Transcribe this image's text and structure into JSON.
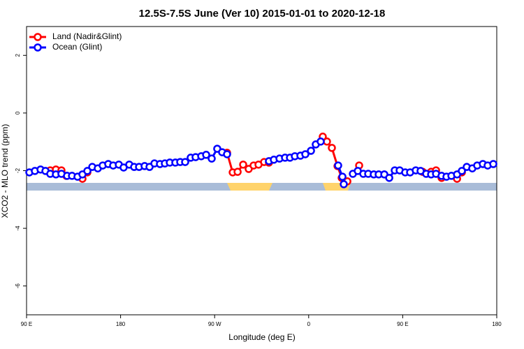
{
  "chart_data": {
    "type": "line",
    "title": "12.5S-7.5S June (Ver 10)   2015-01-01 to 2020-12-18",
    "xlabel": "Longitude (deg E)",
    "ylabel": "XCO2 - MLO trend (ppm)",
    "xlim": [
      90,
      540
    ],
    "xticks": [
      {
        "value": 90,
        "label": "90 E"
      },
      180,
      {
        "value": 270,
        "label": "90 W"
      },
      {
        "value": 360,
        "label": "0"
      },
      {
        "value": 450,
        "label": "90 E"
      },
      {
        "value": 540,
        "label": "180"
      }
    ],
    "ylim": [
      -7,
      3
    ],
    "yticks": [
      2,
      0,
      -2,
      -4,
      -6
    ],
    "legend": "top-left",
    "series": [
      {
        "name": "Land (Nadir&Glint)",
        "color": "#ff0000",
        "x": [
          112.7,
          118.1,
          123.4,
          128.1,
          null,
          143.5,
          148.2,
          null,
          281.9,
          287.3,
          292.0,
          297.3,
          302.6,
          307.3,
          312.0,
          317.4,
          322.0,
          null,
          373.5,
          377.5,
          382.2,
          387.6,
          391.6,
          397.0,
          null,
          408.3,
          null,
          469.1,
          477.2,
          481.9,
          487.2,
          null,
          502.0,
          506.6
        ],
        "values": [
          -1.99,
          -1.96,
          -1.99,
          -2.18,
          null,
          -2.28,
          -2.06,
          null,
          -1.38,
          -2.06,
          -2.04,
          -1.79,
          -1.94,
          -1.82,
          -1.79,
          -1.7,
          -1.72,
          null,
          -0.82,
          -0.99,
          -1.21,
          -1.84,
          -2.25,
          -2.37,
          null,
          -1.82,
          null,
          -2.04,
          -2.04,
          -1.99,
          -2.25,
          null,
          -2.28,
          -2.06
        ]
      },
      {
        "name": "Ocean (Glint)",
        "color": "#0000ff",
        "x": [
          92.7,
          98.0,
          103.4,
          108.1,
          112.7,
          118.1,
          123.4,
          128.8,
          133.5,
          138.8,
          143.5,
          148.2,
          152.9,
          158.2,
          162.9,
          168.2,
          172.9,
          178.3,
          182.9,
          188.3,
          193.0,
          197.7,
          203.0,
          207.7,
          212.4,
          217.7,
          222.4,
          227.1,
          232.4,
          237.1,
          241.8,
          247.1,
          251.8,
          257.2,
          261.9,
          267.2,
          272.5,
          277.2,
          281.9,
          null,
          322.0,
          326.7,
          332.1,
          337.4,
          342.1,
          346.8,
          352.1,
          356.8,
          362.2,
          366.8,
          371.5,
          null,
          388.2,
          392.3,
          393.6,
          null,
          402.3,
          407.0,
          412.3,
          417.0,
          422.3,
          427.0,
          432.4,
          437.1,
          442.4,
          447.1,
          452.4,
          457.1,
          462.5,
          467.1,
          472.5,
          477.2,
          481.9,
          487.2,
          491.9,
          496.6,
          502.0,
          506.6,
          511.3,
          516.6,
          521.3,
          526.7,
          531.3,
          536.7
        ],
        "values": [
          -2.06,
          -2.01,
          -1.96,
          -2.01,
          -2.11,
          -2.13,
          -2.11,
          -2.18,
          -2.18,
          -2.21,
          -2.13,
          -2.01,
          -1.87,
          -1.92,
          -1.82,
          -1.77,
          -1.82,
          -1.79,
          -1.89,
          -1.79,
          -1.87,
          -1.87,
          -1.84,
          -1.87,
          -1.75,
          -1.77,
          -1.75,
          -1.72,
          -1.72,
          -1.7,
          -1.7,
          -1.55,
          -1.53,
          -1.5,
          -1.45,
          -1.58,
          -1.24,
          -1.36,
          -1.43,
          null,
          -1.67,
          -1.62,
          -1.58,
          -1.55,
          -1.55,
          -1.5,
          -1.48,
          -1.43,
          -1.31,
          -1.09,
          -0.99,
          null,
          -1.82,
          -2.21,
          -2.47,
          null,
          -2.11,
          -2.01,
          -2.11,
          -2.11,
          -2.13,
          -2.13,
          -2.13,
          -2.25,
          -1.99,
          -1.99,
          -2.06,
          -2.06,
          -1.99,
          -2.01,
          -2.11,
          -2.13,
          -2.11,
          -2.18,
          -2.21,
          -2.18,
          -2.13,
          -2.01,
          -1.87,
          -1.92,
          -1.82,
          -1.77,
          -1.82,
          -1.77
        ]
      }
    ]
  }
}
